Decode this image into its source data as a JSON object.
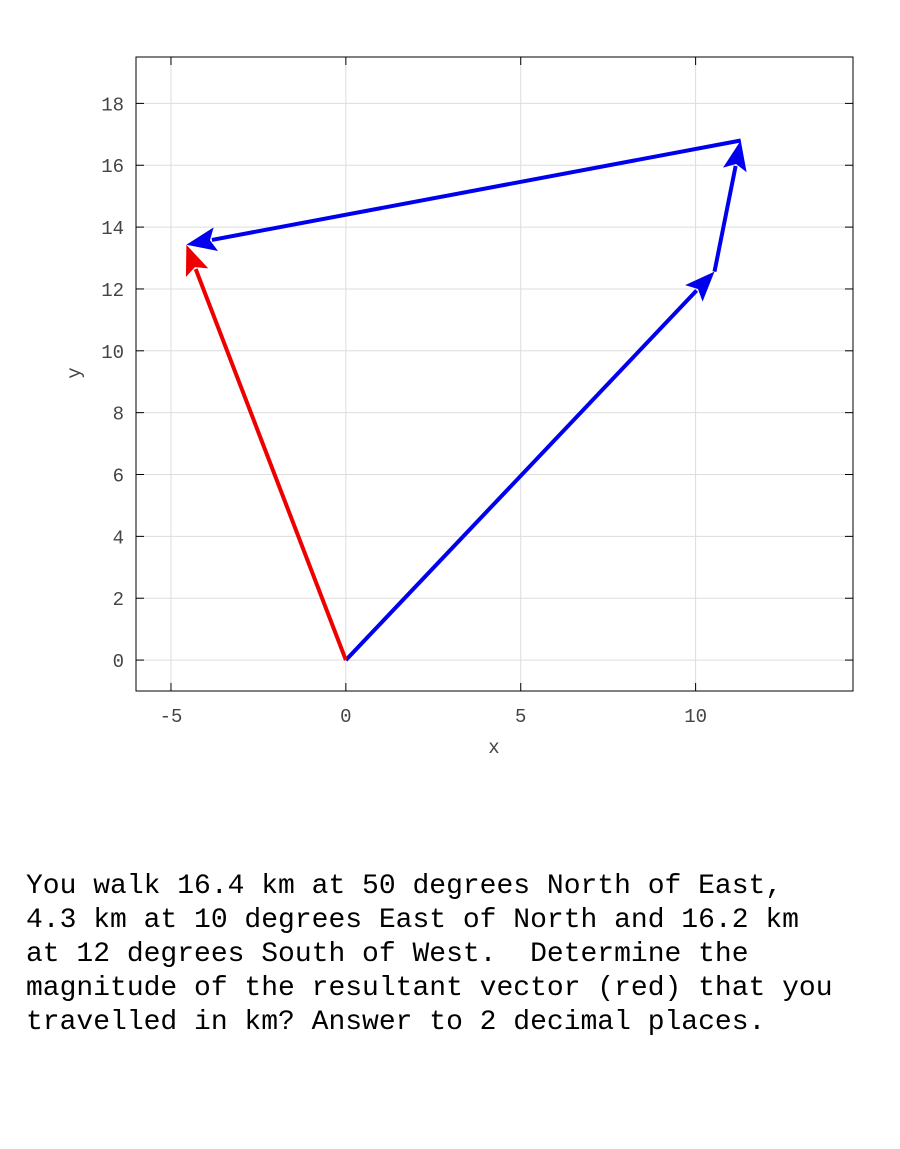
{
  "chart_data": {
    "type": "vector",
    "xlabel": "x",
    "ylabel": "y",
    "xlim": [
      -6,
      14.5
    ],
    "ylim": [
      -1,
      19.5
    ],
    "xticks": [
      -5,
      0,
      5,
      10
    ],
    "yticks": [
      0,
      2,
      4,
      6,
      8,
      10,
      12,
      14,
      16,
      18
    ],
    "grid": true,
    "vectors": [
      {
        "x": [
          0,
          10.54
        ],
        "y": [
          0,
          12.56
        ],
        "color": "#0000ee"
      },
      {
        "x": [
          10.54,
          11.29
        ],
        "y": [
          12.56,
          16.8
        ],
        "color": "#0000ee"
      },
      {
        "x": [
          11.29,
          -4.56
        ],
        "y": [
          16.8,
          13.43
        ],
        "color": "#0000ee"
      },
      {
        "x": [
          0,
          -4.56
        ],
        "y": [
          0,
          13.43
        ],
        "color": "#ee0000"
      }
    ]
  },
  "question": {
    "lines": [
      "You walk 16.4 km at 50 degrees North of East,",
      "4.3 km at 10 degrees East of North and 16.2 km",
      "at 12 degrees South of West.  Determine the",
      "magnitude of the resultant vector (red) that you",
      "travelled in km? Answer to 2 decimal places."
    ]
  }
}
